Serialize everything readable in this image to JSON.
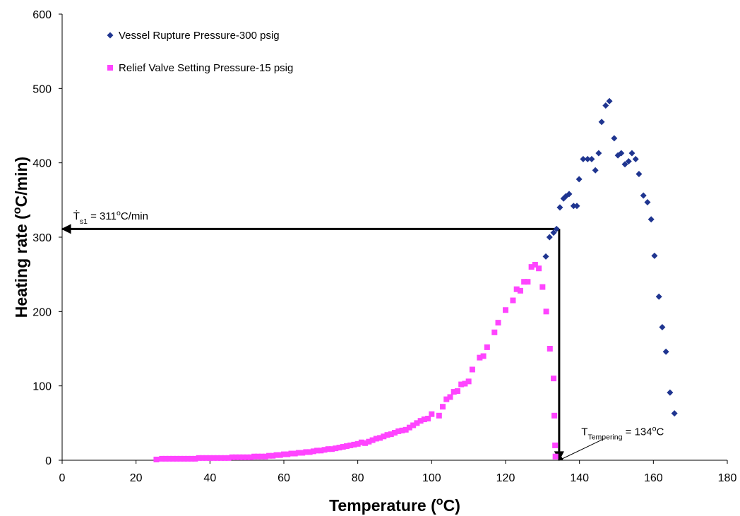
{
  "chart_data": {
    "type": "scatter",
    "xlabel": [
      {
        "text": "Temperature ("
      },
      {
        "text": "o",
        "shift": "super"
      },
      {
        "text": "C)"
      }
    ],
    "ylabel": [
      {
        "text": "Heating rate ("
      },
      {
        "text": "o",
        "shift": "super"
      },
      {
        "text": "C/min)"
      }
    ],
    "xlim": [
      0,
      180
    ],
    "xticks": [
      0,
      20,
      40,
      60,
      80,
      100,
      120,
      140,
      160,
      180
    ],
    "ylim": [
      0,
      600
    ],
    "yticks": [
      0,
      100,
      200,
      300,
      400,
      500,
      600
    ],
    "grid": false,
    "legend": "top-left",
    "series": [
      {
        "name": "Vessel Rupture Pressure-300 psig",
        "color": "#1f3590",
        "marker": "diamond",
        "x": [
          130.9,
          131.9,
          133.0,
          133.8,
          134.7,
          135.7,
          136.3,
          137.2,
          138.4,
          139.3,
          139.9,
          141.0,
          142.2,
          143.3,
          144.3,
          145.2,
          146.0,
          147.1,
          148.1,
          149.4,
          150.4,
          151.3,
          152.3,
          153.3,
          154.2,
          155.2,
          156.1,
          157.3,
          158.4,
          159.4,
          160.3,
          161.5,
          162.4,
          163.4,
          164.5,
          165.7
        ],
        "values": [
          274,
          300,
          306,
          311,
          340,
          352,
          355,
          358,
          342,
          342,
          378,
          405,
          405,
          405,
          390,
          413,
          455,
          477,
          483,
          433,
          410,
          413,
          398,
          402,
          413,
          405,
          385,
          356,
          347,
          324,
          275,
          220,
          179,
          146,
          91,
          63
        ]
      },
      {
        "name": "Relief Valve Setting Pressure-15 psig",
        "color": "#ff44ff",
        "marker": "square",
        "x": [
          25.5,
          27,
          28,
          29,
          30,
          31,
          32,
          33,
          34,
          35,
          36,
          37,
          38,
          39,
          40,
          41,
          42,
          43,
          44,
          45,
          46,
          47,
          48,
          49,
          50,
          51,
          52,
          53,
          54,
          55,
          56,
          57,
          58,
          59,
          60,
          61,
          62,
          63,
          64,
          65,
          66,
          67,
          68,
          69,
          70,
          71,
          72,
          73,
          74,
          75,
          76,
          77,
          78,
          79,
          80,
          81,
          82,
          83,
          84,
          85,
          86,
          87,
          88,
          89,
          90,
          91,
          92,
          93,
          94,
          95,
          96,
          97,
          98,
          99,
          100,
          102,
          103,
          104,
          105,
          106,
          107,
          108,
          109,
          110,
          111,
          113,
          114,
          115,
          117,
          118,
          120,
          122,
          123,
          124,
          125,
          126,
          127,
          128,
          129,
          130,
          131,
          132,
          133,
          133.2,
          133.4,
          133.5
        ],
        "values": [
          1,
          2,
          2,
          2,
          2,
          2,
          2,
          2,
          2,
          2,
          2,
          3,
          3,
          3,
          3,
          3,
          3,
          3,
          3,
          3,
          4,
          4,
          4,
          4,
          4,
          4,
          5,
          5,
          5,
          5,
          6,
          6,
          7,
          7,
          8,
          8,
          9,
          9,
          10,
          10,
          11,
          11,
          12,
          13,
          13,
          14,
          15,
          15,
          16,
          17,
          18,
          19,
          20,
          21,
          22,
          24,
          23,
          25,
          27,
          29,
          30,
          32,
          34,
          35,
          37,
          39,
          40,
          41,
          44,
          47,
          50,
          53,
          55,
          56,
          62,
          60,
          72,
          82,
          85,
          92,
          93,
          102,
          103,
          106,
          122,
          138,
          140,
          152,
          172,
          185,
          202,
          215,
          230,
          228,
          240,
          240,
          260,
          263,
          258,
          233,
          200,
          150,
          110,
          60,
          20,
          5
        ]
      }
    ],
    "arrows": [
      {
        "x": [
          134.5,
          0
        ],
        "y": [
          311,
          311
        ],
        "width": 3
      },
      {
        "x": [
          134.5,
          134.5
        ],
        "y": [
          311,
          0
        ],
        "width": 3
      },
      {
        "x": [
          146.5,
          134.5
        ],
        "y": [
          28.5,
          0
        ],
        "width": 1
      }
    ],
    "annotations": [
      {
        "x": 3,
        "y": 318,
        "segments": [
          {
            "text": "Ṫ"
          },
          {
            "text": "s1",
            "shift": "sub"
          },
          {
            "text": " = 311"
          },
          {
            "text": "o",
            "shift": "super"
          },
          {
            "text": "C/min"
          }
        ]
      },
      {
        "x": 140.5,
        "y": 28,
        "segments": [
          {
            "text": "T"
          },
          {
            "text": "Tempering",
            "shift": "sub"
          },
          {
            "text": " = 134"
          },
          {
            "text": "o",
            "shift": "super"
          },
          {
            "text": "C"
          }
        ]
      }
    ]
  }
}
